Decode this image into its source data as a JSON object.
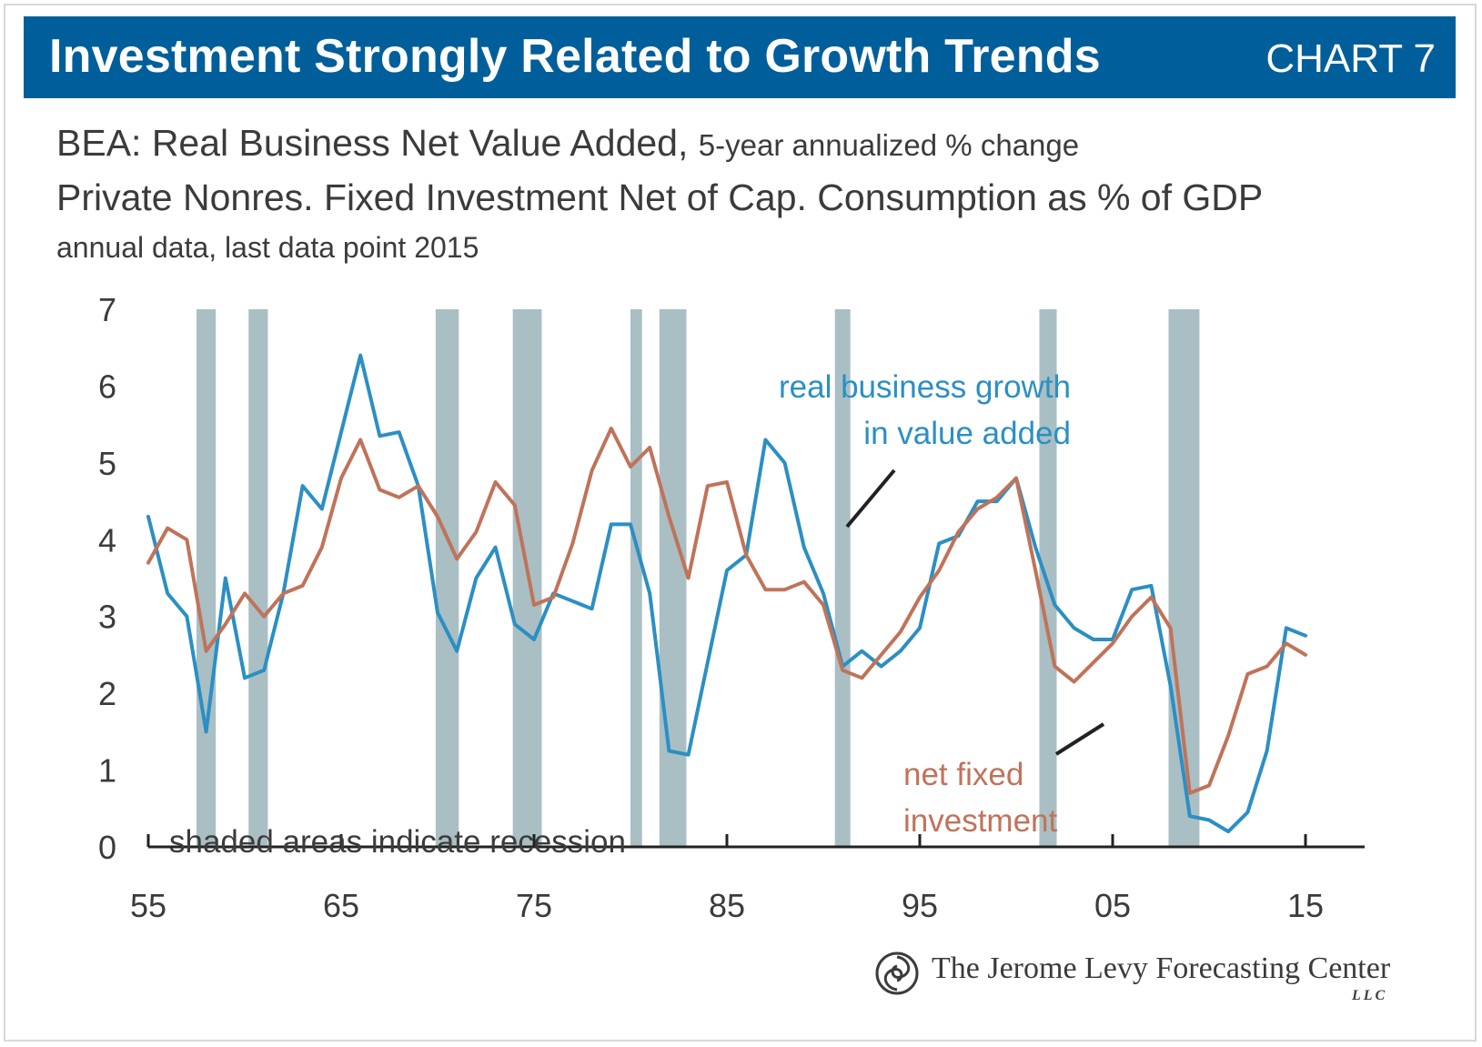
{
  "header": {
    "title": "Investment Strongly Related to Growth Trends",
    "tag": "CHART 7"
  },
  "subtitle": {
    "line1_main": "BEA: Real Business Net Value Added,",
    "line1_small": "5-year annualized % change",
    "line2": "Private Nonres. Fixed Investment Net of Cap. Consumption as % of GDP",
    "line3": "annual data, last data point 2015"
  },
  "annotations": {
    "blue_line1": "real business growth",
    "blue_line2": "in value added",
    "brown_line1": "net fixed",
    "brown_line2": "investment",
    "recession_note": "shaded areas indicate recession"
  },
  "footer": {
    "publisher": "The Jerome Levy Forecasting Center",
    "suffix": "LLC"
  },
  "colors": {
    "banner": "#005f9a",
    "blue_series": "#2b8fc4",
    "brown_series": "#c0735a",
    "recession_shading": "#a9bfc4"
  },
  "chart_data": {
    "type": "line",
    "title": "Investment Strongly Related to Growth Trends",
    "xlabel": "",
    "ylabel": "",
    "xlim": [
      1955,
      2015
    ],
    "ylim": [
      0,
      7
    ],
    "x_tick_labels": [
      "55",
      "65",
      "75",
      "85",
      "95",
      "05",
      "15"
    ],
    "x_tick_values": [
      1955,
      1965,
      1975,
      1985,
      1995,
      2005,
      2015
    ],
    "y_ticks": [
      0,
      1,
      2,
      3,
      4,
      5,
      6,
      7
    ],
    "grid": false,
    "recessions": [
      [
        1957.5,
        1958.5
      ],
      [
        1960.2,
        1961.2
      ],
      [
        1969.9,
        1971.1
      ],
      [
        1973.9,
        1975.4
      ],
      [
        1980.0,
        1980.6
      ],
      [
        1981.5,
        1982.9
      ],
      [
        1990.6,
        1991.4
      ],
      [
        2001.2,
        2002.1
      ],
      [
        2007.9,
        2009.5
      ]
    ],
    "series": [
      {
        "name": "real business growth in value added",
        "color": "#2b8fc4",
        "x": [
          1955,
          1956,
          1957,
          1958,
          1959,
          1960,
          1961,
          1962,
          1963,
          1964,
          1965,
          1966,
          1967,
          1968,
          1969,
          1970,
          1971,
          1972,
          1973,
          1974,
          1975,
          1976,
          1977,
          1978,
          1979,
          1980,
          1981,
          1982,
          1983,
          1984,
          1985,
          1986,
          1987,
          1988,
          1989,
          1990,
          1991,
          1992,
          1993,
          1994,
          1995,
          1996,
          1997,
          1998,
          1999,
          2000,
          2001,
          2002,
          2003,
          2004,
          2005,
          2006,
          2007,
          2008,
          2009,
          2010,
          2011,
          2012,
          2013,
          2014,
          2015
        ],
        "values": [
          4.3,
          3.3,
          3.0,
          1.5,
          3.5,
          2.2,
          2.3,
          3.3,
          4.7,
          4.4,
          5.4,
          6.4,
          5.35,
          5.4,
          4.7,
          3.05,
          2.55,
          3.5,
          3.9,
          2.9,
          2.7,
          3.3,
          3.2,
          3.1,
          4.2,
          4.2,
          3.3,
          1.25,
          1.2,
          2.4,
          3.6,
          3.8,
          5.3,
          5.0,
          3.9,
          3.3,
          2.35,
          2.55,
          2.35,
          2.55,
          2.85,
          3.95,
          4.05,
          4.5,
          4.5,
          4.8,
          3.9,
          3.15,
          2.85,
          2.7,
          2.7,
          3.35,
          3.4,
          2.1,
          0.4,
          0.35,
          0.2,
          0.45,
          1.25,
          2.85,
          2.75
        ]
      },
      {
        "name": "net fixed investment",
        "color": "#c0735a",
        "x": [
          1955,
          1956,
          1957,
          1958,
          1959,
          1960,
          1961,
          1962,
          1963,
          1964,
          1965,
          1966,
          1967,
          1968,
          1969,
          1970,
          1971,
          1972,
          1973,
          1974,
          1975,
          1976,
          1977,
          1978,
          1979,
          1980,
          1981,
          1982,
          1983,
          1984,
          1985,
          1986,
          1987,
          1988,
          1989,
          1990,
          1991,
          1992,
          1993,
          1994,
          1995,
          1996,
          1997,
          1998,
          1999,
          2000,
          2001,
          2002,
          2003,
          2004,
          2005,
          2006,
          2007,
          2008,
          2009,
          2010,
          2011,
          2012,
          2013,
          2014,
          2015
        ],
        "values": [
          3.7,
          4.15,
          4.0,
          2.55,
          2.9,
          3.3,
          3.0,
          3.3,
          3.4,
          3.9,
          4.8,
          5.3,
          4.65,
          4.55,
          4.7,
          4.3,
          3.75,
          4.1,
          4.75,
          4.45,
          3.15,
          3.25,
          3.95,
          4.9,
          5.45,
          4.95,
          5.2,
          4.3,
          3.5,
          4.7,
          4.75,
          3.8,
          3.35,
          3.35,
          3.45,
          3.15,
          2.3,
          2.2,
          2.5,
          2.8,
          3.25,
          3.6,
          4.1,
          4.4,
          4.55,
          4.8,
          3.6,
          2.35,
          2.15,
          2.4,
          2.65,
          3.0,
          3.25,
          2.85,
          0.7,
          0.8,
          1.45,
          2.25,
          2.35,
          2.65,
          2.5
        ]
      }
    ]
  }
}
